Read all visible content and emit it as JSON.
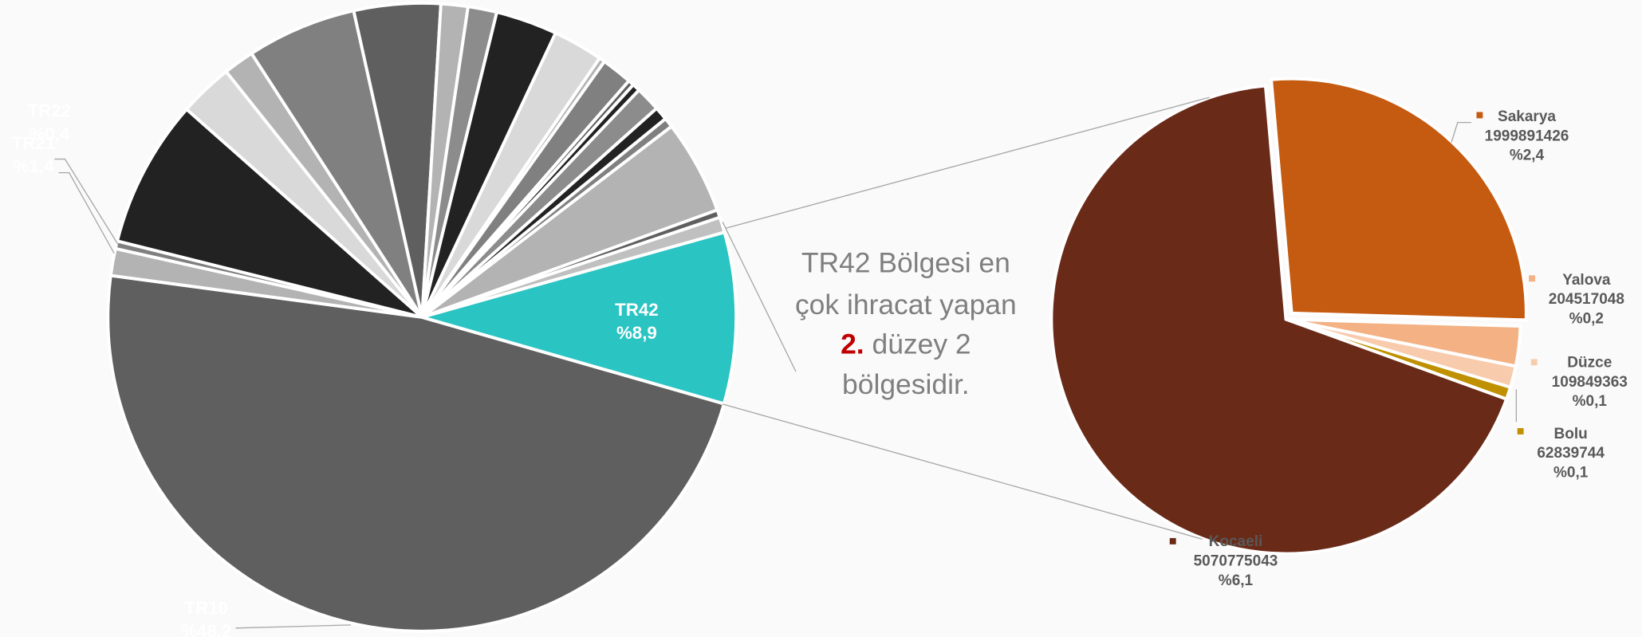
{
  "chart_data": [
    {
      "type": "pie",
      "categories": [
        "TR10",
        "TR21",
        "TR22",
        null,
        null,
        null,
        null,
        null,
        null,
        null,
        null,
        null,
        null,
        null,
        null,
        null,
        null,
        null,
        null,
        null,
        null,
        null,
        "TR42"
      ],
      "values": [
        48.2,
        1.4,
        0.4,
        7.7,
        2.8,
        1.6,
        5.7,
        4.5,
        1.4,
        1.5,
        3.2,
        2.6,
        0.3,
        1.6,
        0.3,
        0.4,
        1.3,
        0.7,
        0.5,
        4.9,
        0.4,
        0.8,
        8.9
      ],
      "value_labels": [
        "%48,2",
        "%1,4",
        "%0,4",
        null,
        null,
        null,
        null,
        null,
        null,
        null,
        null,
        null,
        null,
        null,
        null,
        null,
        null,
        null,
        null,
        null,
        null,
        null,
        "%8,9"
      ],
      "colors": [
        "#5f5f5f",
        "#b3b3b3",
        "#7f7f7f",
        "#222222",
        "#d9d9d9",
        "#b3b3b3",
        "#808080",
        "#5f5f5f",
        "#b3b3b3",
        "#8c8c8c",
        "#222222",
        "#d9d9d9",
        "#b3b3b3",
        "#808080",
        "#5f5f5f",
        "#222222",
        "#8c8c8c",
        "#222222",
        "#808080",
        "#b3b3b3",
        "#5f5f5f",
        "#c0c0c0",
        "#2ac4c2"
      ]
    },
    {
      "type": "pie",
      "categories": [
        "Sakarya",
        "Yalova",
        "Düzce",
        "Bolu",
        "Kocaeli"
      ],
      "values": [
        1999891426,
        204517048,
        109849363,
        62839744,
        5070775043
      ],
      "percentage_labels": [
        "%2,4",
        "%0,2",
        "%0,1",
        "%0,1",
        "%6,1"
      ],
      "colors": [
        "#c55a11",
        "#f4b183",
        "#f8cbad",
        "#bf9000",
        "#6a2a18"
      ]
    }
  ],
  "annotation": {
    "line1": "TR42 Bölgesi en",
    "line2": "çok ihracat yapan",
    "rank": "2.",
    "line3": " düzey 2",
    "line4": "bölgesidir."
  }
}
